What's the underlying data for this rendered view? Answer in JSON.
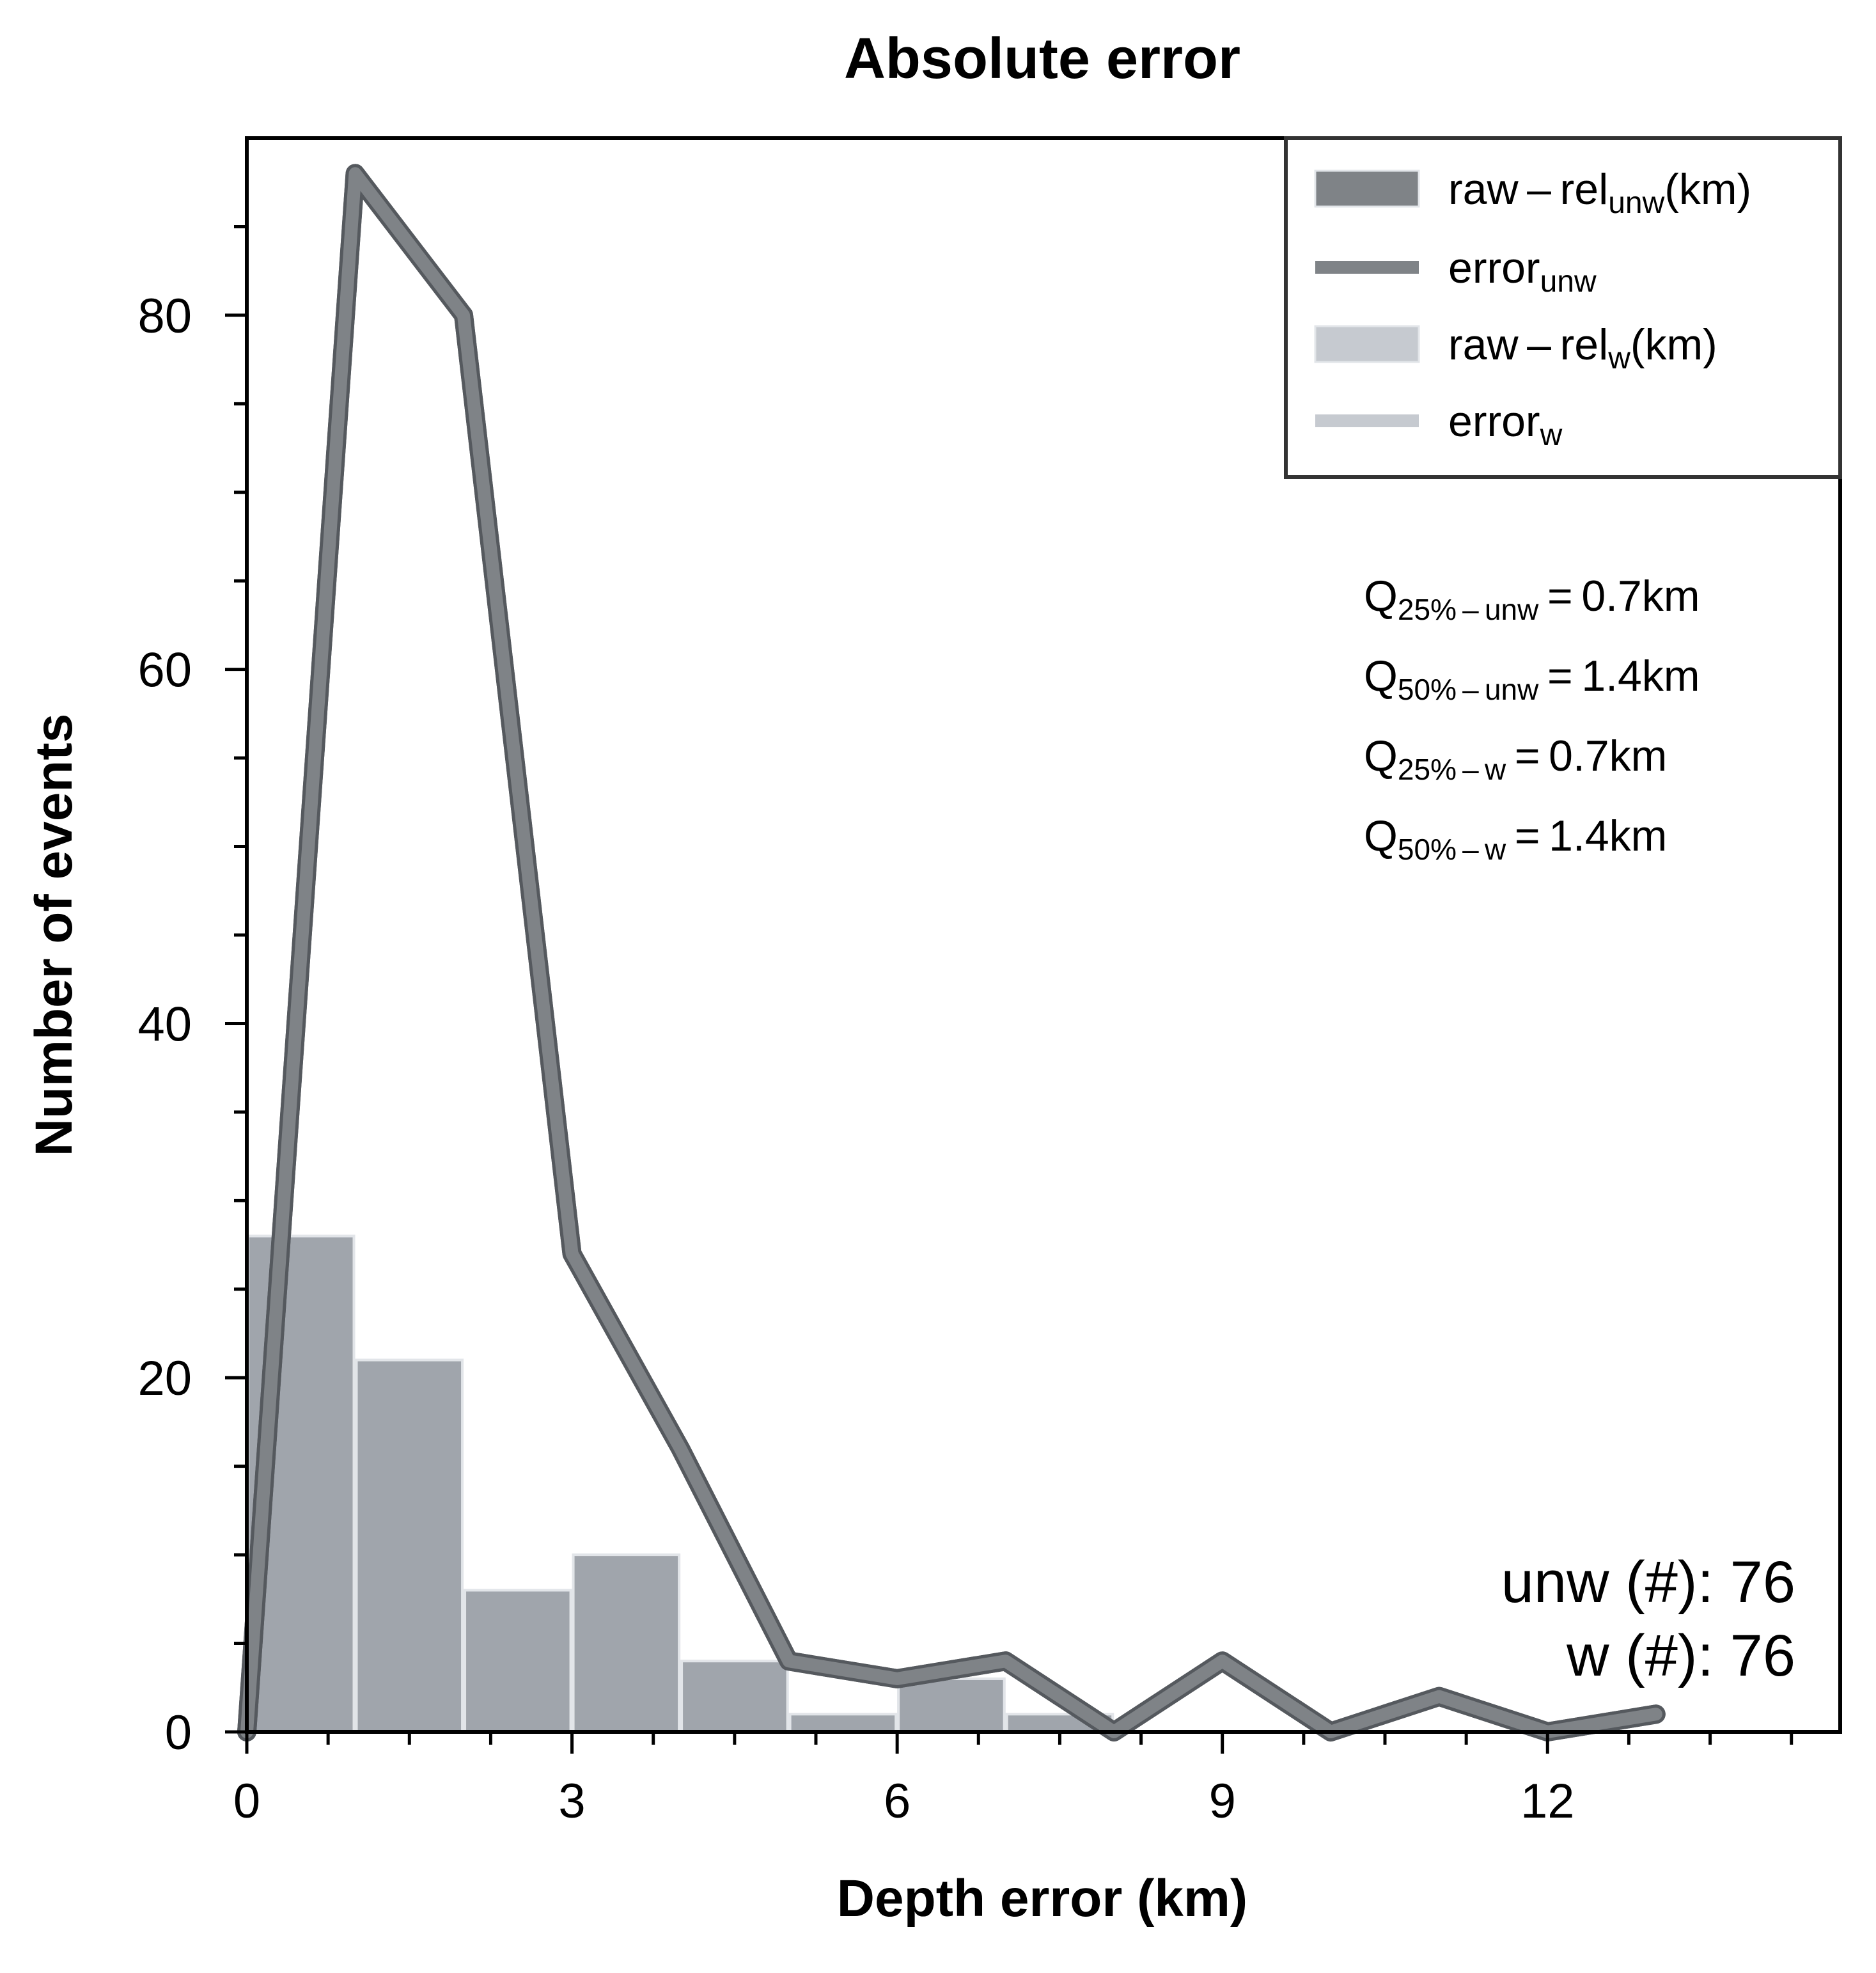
{
  "chart_data": {
    "type": "bar",
    "title": "Absolute error",
    "xlabel": "Depth error (km)",
    "ylabel": "Number of events",
    "xlim": [
      0,
      14.7
    ],
    "ylim": [
      0,
      90
    ],
    "xticks": [
      0,
      3,
      6,
      9,
      12
    ],
    "yticks": [
      0,
      20,
      40,
      60,
      80
    ],
    "x_minor_step": 0.75,
    "y_minor_step": 5,
    "grid": false,
    "legend_position": "top-right",
    "colors": {
      "unw": "#7f8387",
      "w": "#c6cad0",
      "overlap": "#a0a5ac",
      "bar_edge": "#e2e5e9",
      "frame": "#000000",
      "legend_frame": "#333333"
    },
    "histograms": [
      {
        "name": "raw-rel_unw(km)",
        "bin_edges": [
          0,
          1,
          2,
          3,
          4,
          5,
          6,
          7,
          8,
          9,
          10,
          11,
          12,
          13
        ],
        "counts": [
          28,
          21,
          8,
          10,
          4,
          1,
          3,
          1,
          0,
          0,
          0,
          0,
          0
        ]
      },
      {
        "name": "raw-rel_w(km)",
        "bin_edges": [
          0,
          1,
          2,
          3,
          4,
          5,
          6,
          7,
          8,
          9,
          10,
          11,
          12,
          13
        ],
        "counts": [
          28,
          21,
          8,
          10,
          4,
          1,
          3,
          1,
          0,
          0,
          0,
          0,
          0
        ]
      }
    ],
    "series": [
      {
        "name": "error_unw",
        "x": [
          0,
          1,
          2,
          3,
          4,
          5,
          6,
          7,
          8,
          9,
          10,
          11,
          12,
          13
        ],
        "y": [
          0,
          88,
          80,
          27,
          16,
          4,
          3,
          4,
          0,
          4,
          0,
          2,
          0,
          1
        ]
      },
      {
        "name": "error_w",
        "x": [
          0,
          1,
          2,
          3,
          4,
          5,
          6,
          7,
          8,
          9,
          10,
          11,
          12,
          13
        ],
        "y": [
          0,
          88,
          80,
          27,
          16,
          4,
          3,
          4,
          0,
          4,
          0,
          2,
          0,
          1
        ]
      }
    ],
    "legend": [
      {
        "kind": "patch",
        "color": "#7f8387",
        "main": "raw – rel",
        "sub": "unw",
        "suffix": "(km)"
      },
      {
        "kind": "line",
        "color": "#7f8387",
        "main": "error",
        "sub": "unw",
        "suffix": ""
      },
      {
        "kind": "patch",
        "color": "#c6cad0",
        "main": "raw – rel",
        "sub": "w",
        "suffix": "(km)"
      },
      {
        "kind": "line",
        "color": "#c6cad0",
        "main": "error",
        "sub": "w",
        "suffix": ""
      }
    ],
    "annotations": {
      "quantiles": [
        {
          "main": "Q",
          "sub": "25% – unw",
          "value": " = 0.7km"
        },
        {
          "main": "Q",
          "sub": "50% – unw",
          "value": " = 1.4km"
        },
        {
          "main": "Q",
          "sub": "25% – w",
          "value": " = 0.7km"
        },
        {
          "main": "Q",
          "sub": "50% – w",
          "value": " = 1.4km"
        }
      ],
      "counts": [
        "unw (#): 76",
        "w (#): 76"
      ]
    }
  }
}
